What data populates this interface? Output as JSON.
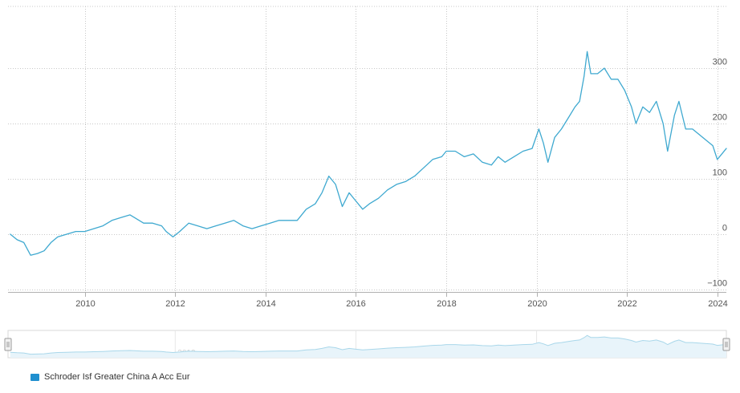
{
  "chart_data": {
    "type": "line",
    "title": "",
    "xlabel": "",
    "ylabel": "",
    "xlim": [
      2008.3,
      2024.2
    ],
    "ylim": [
      -100,
      380
    ],
    "y_ticks": [
      -100,
      0,
      100,
      200,
      300
    ],
    "y_tick_labels": [
      "−100",
      "0",
      "100",
      "200",
      "300"
    ],
    "x_ticks": [
      2010,
      2012,
      2014,
      2016,
      2018,
      2020,
      2022,
      2024
    ],
    "x_tick_labels": [
      "2010",
      "2012",
      "2014",
      "2016",
      "2018",
      "2020",
      "2022",
      "2024"
    ],
    "navigator_tick_labels": [
      "2012",
      "2016",
      "2020"
    ],
    "grid": true,
    "legend_position": "bottom-left",
    "series": [
      {
        "name": "Schroder Isf Greater China A Acc Eur",
        "color": "#3fa9d0",
        "x": [
          2008.35,
          2008.5,
          2008.65,
          2008.8,
          2008.95,
          2009.1,
          2009.25,
          2009.4,
          2009.6,
          2009.8,
          2010.0,
          2010.2,
          2010.4,
          2010.6,
          2010.8,
          2011.0,
          2011.1,
          2011.3,
          2011.5,
          2011.7,
          2011.8,
          2011.95,
          2012.1,
          2012.3,
          2012.5,
          2012.7,
          2012.9,
          2013.1,
          2013.3,
          2013.5,
          2013.7,
          2013.9,
          2014.1,
          2014.3,
          2014.5,
          2014.7,
          2014.9,
          2015.1,
          2015.25,
          2015.4,
          2015.55,
          2015.7,
          2015.85,
          2016.0,
          2016.15,
          2016.3,
          2016.5,
          2016.7,
          2016.9,
          2017.1,
          2017.3,
          2017.5,
          2017.7,
          2017.9,
          2018.0,
          2018.2,
          2018.4,
          2018.6,
          2018.8,
          2019.0,
          2019.15,
          2019.3,
          2019.5,
          2019.7,
          2019.9,
          2020.05,
          2020.15,
          2020.25,
          2020.4,
          2020.55,
          2020.7,
          2020.85,
          2020.95,
          2021.05,
          2021.12,
          2021.2,
          2021.35,
          2021.5,
          2021.65,
          2021.8,
          2021.95,
          2022.1,
          2022.2,
          2022.35,
          2022.5,
          2022.65,
          2022.8,
          2022.9,
          2023.05,
          2023.15,
          2023.3,
          2023.45,
          2023.6,
          2023.75,
          2023.9,
          2024.0,
          2024.1,
          2024.2
        ],
        "y": [
          0,
          -10,
          -15,
          -38,
          -35,
          -30,
          -15,
          -5,
          0,
          5,
          5,
          10,
          15,
          25,
          30,
          35,
          30,
          20,
          20,
          15,
          5,
          -5,
          5,
          20,
          15,
          10,
          15,
          20,
          25,
          15,
          10,
          15,
          20,
          25,
          25,
          25,
          45,
          55,
          75,
          105,
          90,
          50,
          75,
          60,
          45,
          55,
          65,
          80,
          90,
          95,
          105,
          120,
          135,
          140,
          150,
          150,
          140,
          145,
          130,
          125,
          140,
          130,
          140,
          150,
          155,
          190,
          165,
          130,
          175,
          190,
          210,
          230,
          240,
          285,
          330,
          290,
          290,
          300,
          280,
          280,
          260,
          230,
          200,
          230,
          220,
          240,
          200,
          150,
          215,
          240,
          190,
          190,
          180,
          170,
          160,
          135,
          145,
          155
        ]
      }
    ]
  }
}
